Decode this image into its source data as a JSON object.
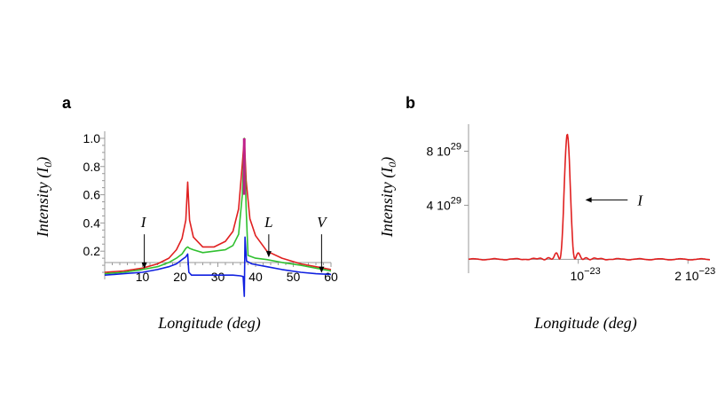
{
  "chart_data": [
    {
      "panel": "a",
      "type": "line",
      "xlabel": "Longitude (deg)",
      "ylabel_main": "Intensity (I",
      "ylabel_sub": "0",
      "ylabel_end": ")",
      "xlim": [
        0,
        60
      ],
      "ylim": [
        0,
        1.05
      ],
      "x_ticks": [
        10,
        20,
        30,
        40,
        50,
        60
      ],
      "x_tick_labels": [
        "10",
        "20",
        "30",
        "40",
        "50",
        "60"
      ],
      "y_ticks": [
        0.2,
        0.4,
        0.6,
        0.8,
        1.0
      ],
      "y_tick_labels": [
        "0.2",
        "0.4",
        "0.6",
        "0.8",
        "1.0"
      ],
      "series": [
        {
          "name": "I",
          "color": "#e02020",
          "points": [
            [
              0,
              0.05
            ],
            [
              5,
              0.06
            ],
            [
              10,
              0.08
            ],
            [
              14,
              0.11
            ],
            [
              17,
              0.15
            ],
            [
              19,
              0.21
            ],
            [
              20.5,
              0.29
            ],
            [
              21.5,
              0.42
            ],
            [
              22,
              0.69
            ],
            [
              22.5,
              0.42
            ],
            [
              23.5,
              0.3
            ],
            [
              26,
              0.23
            ],
            [
              29,
              0.23
            ],
            [
              32,
              0.27
            ],
            [
              34,
              0.34
            ],
            [
              35.5,
              0.5
            ],
            [
              36.5,
              0.82
            ],
            [
              37,
              1.0
            ],
            [
              37.5,
              0.7
            ],
            [
              38.5,
              0.43
            ],
            [
              40,
              0.31
            ],
            [
              43,
              0.2
            ],
            [
              47,
              0.15
            ],
            [
              52,
              0.11
            ],
            [
              56,
              0.09
            ],
            [
              60,
              0.07
            ]
          ]
        },
        {
          "name": "L",
          "color": "#30c030",
          "points": [
            [
              0,
              0.04
            ],
            [
              5,
              0.05
            ],
            [
              10,
              0.07
            ],
            [
              14,
              0.09
            ],
            [
              17,
              0.12
            ],
            [
              19,
              0.15
            ],
            [
              20.5,
              0.18
            ],
            [
              21.5,
              0.22
            ],
            [
              22,
              0.23
            ],
            [
              22.5,
              0.22
            ],
            [
              23.5,
              0.21
            ],
            [
              26,
              0.19
            ],
            [
              29,
              0.2
            ],
            [
              32,
              0.21
            ],
            [
              34,
              0.24
            ],
            [
              35.5,
              0.32
            ],
            [
              36.5,
              0.6
            ],
            [
              37,
              1.0
            ],
            [
              37.5,
              0.5
            ],
            [
              38,
              0.17
            ],
            [
              40,
              0.15
            ],
            [
              43,
              0.14
            ],
            [
              47,
              0.12
            ],
            [
              52,
              0.1
            ],
            [
              56,
              0.08
            ],
            [
              60,
              0.06
            ]
          ]
        },
        {
          "name": "V",
          "color": "#1020e0",
          "points": [
            [
              0,
              0.03
            ],
            [
              5,
              0.04
            ],
            [
              10,
              0.05
            ],
            [
              14,
              0.07
            ],
            [
              17,
              0.09
            ],
            [
              19,
              0.11
            ],
            [
              20.5,
              0.14
            ],
            [
              21.5,
              0.16
            ],
            [
              22,
              0.18
            ],
            [
              22.3,
              0.05
            ],
            [
              23,
              0.03
            ],
            [
              26,
              0.03
            ],
            [
              30,
              0.03
            ],
            [
              34,
              0.03
            ],
            [
              36,
              0.025
            ],
            [
              36.7,
              0.02
            ],
            [
              37,
              -0.12
            ],
            [
              37.2,
              0.3
            ],
            [
              37.6,
              0.13
            ],
            [
              39,
              0.11
            ],
            [
              43,
              0.09
            ],
            [
              47,
              0.07
            ],
            [
              52,
              0.05
            ],
            [
              56,
              0.04
            ],
            [
              60,
              0.035
            ]
          ]
        }
      ],
      "annotations": [
        {
          "text": "I",
          "x": 10.5,
          "text_y": 0.37,
          "arrow_to": 0.07
        },
        {
          "text": "L",
          "x": 43.5,
          "text_y": 0.37,
          "arrow_to": 0.15
        },
        {
          "text": "V",
          "x": 57.5,
          "text_y": 0.37,
          "arrow_to": 0.04
        }
      ]
    },
    {
      "panel": "b",
      "type": "line",
      "xlabel": "Longitude (deg)",
      "ylabel_main": "Intensity (I",
      "ylabel_sub": "0",
      "ylabel_end": ")",
      "xlim": [
        0,
        2.2e-23
      ],
      "ylim": [
        -5e+28,
        1e+30
      ],
      "x_ticks": [
        1e-23,
        2e-23
      ],
      "x_tick_labels": [
        {
          "base": "10",
          "exp": "−23"
        },
        {
          "base": "2 10",
          "exp": "−23"
        }
      ],
      "y_ticks": [
        4e+29,
        8e+29
      ],
      "y_tick_labels": [
        {
          "base": "4 10",
          "exp": "29"
        },
        {
          "base": "8 10",
          "exp": "29"
        }
      ],
      "series": [
        {
          "name": "I",
          "color": "#e02020",
          "peak_x": 9e-24,
          "peak_y": 9.3e+29,
          "width": 7e-25
        }
      ],
      "annotations": [
        {
          "text": "I",
          "x": 1.45e-23,
          "y": 4.4e+29,
          "arrow_to_x": 1e-23
        }
      ]
    }
  ],
  "panel_labels": {
    "a": "a",
    "b": "b"
  }
}
